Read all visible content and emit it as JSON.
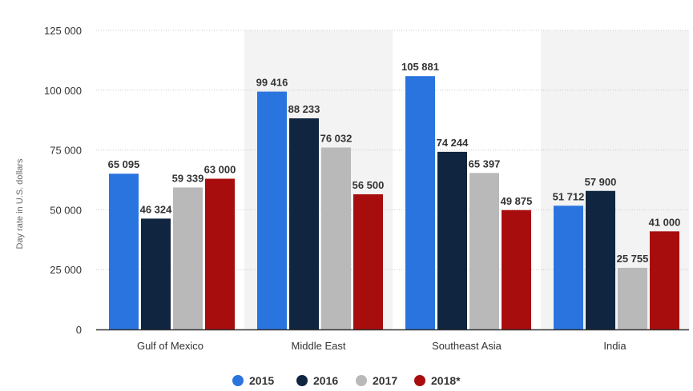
{
  "chart_data": {
    "type": "bar",
    "title": "",
    "xlabel": "",
    "ylabel": "Day rate in U.S. dollars",
    "categories": [
      "Gulf of Mexico",
      "Middle East",
      "Southeast Asia",
      "India"
    ],
    "series": [
      {
        "name": "2015",
        "values": [
          65095,
          99416,
          105881,
          51712
        ],
        "labels": [
          "65 095",
          "99 416",
          "105 881",
          "51 712"
        ],
        "color": "#2a74df"
      },
      {
        "name": "2016",
        "values": [
          46324,
          88233,
          74244,
          57900
        ],
        "labels": [
          "46 324",
          "88 233",
          "74 244",
          "57 900"
        ],
        "color": "#10253f"
      },
      {
        "name": "2017",
        "values": [
          59339,
          76032,
          65397,
          25755
        ],
        "labels": [
          "59 339",
          "76 032",
          "65 397",
          "25 755"
        ],
        "color": "#b9b9b9"
      },
      {
        "name": "2018*",
        "values": [
          63000,
          56500,
          49875,
          41000
        ],
        "labels": [
          "63 000",
          "56 500",
          "49 875",
          "41 000"
        ],
        "color": "#a80d0d"
      }
    ],
    "ylim": [
      0,
      125000
    ],
    "yticks": [
      0,
      25000,
      50000,
      75000,
      100000,
      125000
    ],
    "ytick_labels": [
      "0",
      "25 000",
      "50 000",
      "75 000",
      "100 000",
      "125 000"
    ],
    "grid": true,
    "alternating_band_color": "#f3f3f3",
    "legend_position": "bottom-center"
  }
}
